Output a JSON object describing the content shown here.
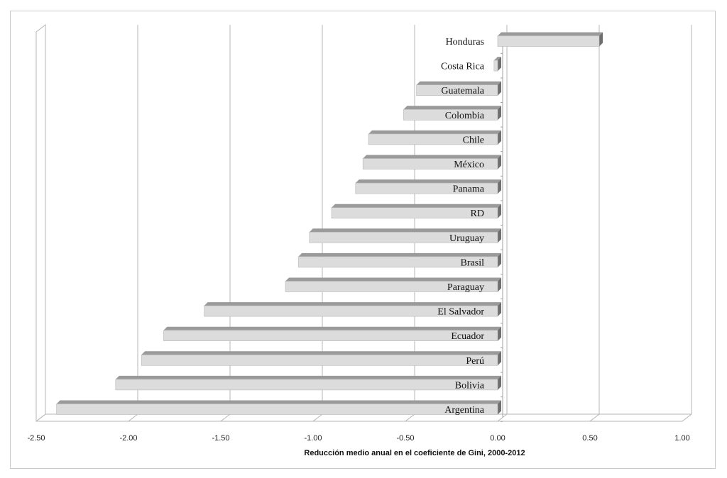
{
  "chart_data": {
    "type": "bar",
    "orientation": "horizontal",
    "categories": [
      "Honduras",
      "Costa Rica",
      "Guatemala",
      "Colombia",
      "Chile",
      "México",
      "Panama",
      "RD",
      "Uruguay",
      "Brasil",
      "Paraguay",
      "El Salvador",
      "Ecuador",
      "Perú",
      "Bolivia",
      "Argentina"
    ],
    "values": [
      0.55,
      -0.02,
      -0.44,
      -0.51,
      -0.7,
      -0.73,
      -0.77,
      -0.9,
      -1.02,
      -1.08,
      -1.15,
      -1.59,
      -1.81,
      -1.93,
      -2.07,
      -2.39
    ],
    "xlabel": "Reducción medio anual en el coeficiente de Gini, 2000-2012",
    "xlim": [
      -2.5,
      1.0
    ],
    "xticks": [
      -2.5,
      -2.0,
      -1.5,
      -1.0,
      -0.5,
      0.0,
      0.5,
      1.0
    ],
    "xtick_labels": [
      "-2.50",
      "-2.00",
      "-1.50",
      "-1.00",
      "-0.50",
      "0.00",
      "0.50",
      "1.00"
    ],
    "grid": true,
    "legend": "none",
    "style": "3d",
    "bar_color": "#dcdcdc",
    "bar_shade_color": "#9a9a9a"
  }
}
